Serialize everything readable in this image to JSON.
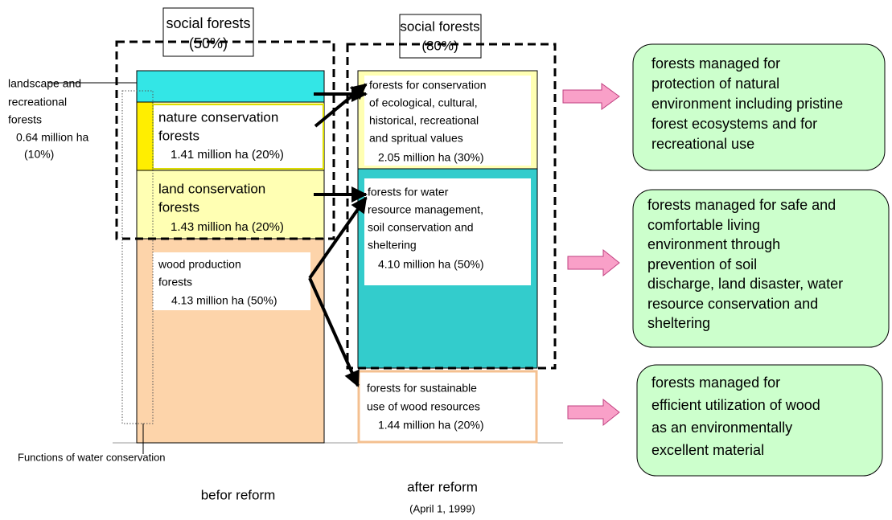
{
  "headers": {
    "before": [
      "social forests",
      "(50%)"
    ],
    "after": [
      "social forests",
      "(80%)"
    ]
  },
  "before": {
    "landscape": [
      "landscape and",
      "recreational",
      "forests",
      "0.64 million ha",
      "(10%)"
    ],
    "nature": [
      "nature conservation",
      "forests",
      "1.41 million ha (20%)"
    ],
    "land": [
      "land conservation",
      "forests",
      "1.43 million ha (20%)"
    ],
    "wood": [
      "wood production",
      "forests",
      "4.13 million ha (50%)"
    ],
    "water_note": "Functions of water conservation",
    "caption": "befor reform"
  },
  "after": {
    "conservation": [
      "forests for conservation",
      "of ecological, cultural,",
      "historical, recreational",
      "and spritual values",
      "2.05 million ha (30%)"
    ],
    "water": [
      "forests for water",
      "resource management,",
      "soil conservation and",
      "sheltering",
      "4.10 million ha (50%)"
    ],
    "wood": [
      "forests for sustainable",
      "use of wood resources",
      "1.44 million ha (20%)"
    ],
    "caption": "after reform",
    "date": "(April 1, 1999)"
  },
  "goals": [
    [
      "forests managed for",
      "protection of natural",
      "environment including pristine",
      "forest ecosystems and for",
      "recreational use"
    ],
    [
      "forests managed for safe and",
      "comfortable living",
      "environment through",
      "prevention of soil",
      "discharge, land disaster, water",
      "resource conservation and",
      "sheltering"
    ],
    [
      "forests managed for",
      "efficient utilization of wood",
      "as an environmentally",
      "excellent material"
    ]
  ]
}
